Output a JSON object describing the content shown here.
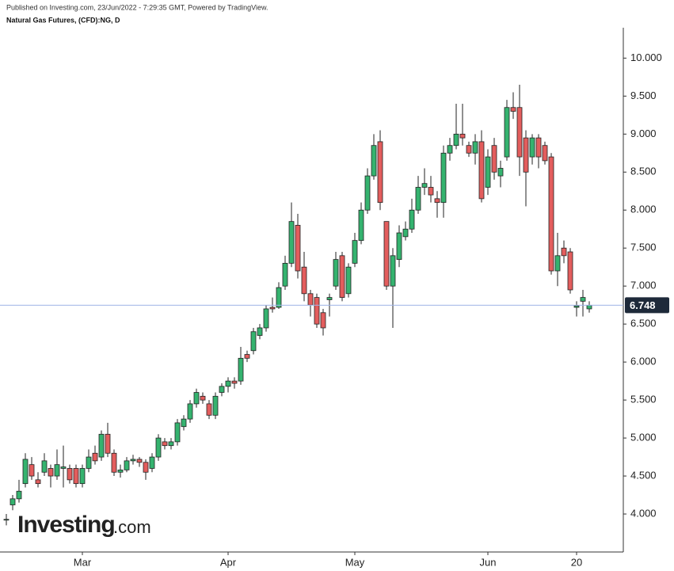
{
  "header": {
    "published": "Published on Investing.com, 23/Jun/2022 - 7:29:35 GMT, Powered by TradingView.",
    "symbol": "Natural Gas Futures, (CFD):NG, D"
  },
  "logo": {
    "brand": "Investing",
    "suffix": ".com"
  },
  "chart_data": {
    "type": "candlestick",
    "categories": [
      null,
      null,
      null,
      null,
      null,
      null,
      null,
      null,
      null,
      null,
      null,
      null,
      "Mar",
      null,
      null,
      null,
      null,
      null,
      null,
      null,
      null,
      null,
      null,
      null,
      null,
      null,
      null,
      null,
      null,
      null,
      null,
      null,
      null,
      null,
      null,
      "Apr",
      null,
      null,
      null,
      null,
      null,
      null,
      null,
      null,
      null,
      null,
      null,
      null,
      null,
      null,
      null,
      null,
      null,
      null,
      null,
      "May",
      null,
      null,
      null,
      null,
      null,
      null,
      null,
      null,
      null,
      null,
      null,
      null,
      null,
      null,
      null,
      null,
      null,
      null,
      null,
      null,
      "Jun",
      null,
      null,
      null,
      null,
      null,
      null,
      null,
      null,
      null,
      null,
      null,
      null,
      null,
      "20",
      null,
      null
    ],
    "open": [
      3.92,
      4.12,
      4.2,
      4.4,
      4.65,
      4.45,
      4.55,
      4.6,
      4.5,
      4.6,
      4.6,
      4.6,
      4.4,
      4.6,
      4.8,
      4.75,
      5.05,
      4.8,
      4.55,
      4.58,
      4.7,
      4.72,
      4.68,
      4.6,
      4.75,
      4.95,
      4.9,
      4.95,
      5.15,
      5.25,
      5.45,
      5.55,
      5.45,
      5.3,
      5.6,
      5.68,
      5.75,
      5.75,
      6.1,
      6.15,
      6.35,
      6.45,
      6.72,
      6.72,
      7.0,
      7.3,
      7.8,
      7.25,
      6.9,
      6.85,
      6.65,
      6.82,
      7.0,
      7.4,
      6.9,
      7.3,
      7.6,
      8.0,
      8.45,
      8.9,
      7.85,
      7.0,
      7.35,
      7.65,
      7.75,
      8.0,
      8.3,
      8.3,
      8.15,
      8.1,
      8.75,
      8.85,
      9.0,
      8.85,
      8.75,
      8.9,
      8.3,
      8.85,
      8.45,
      8.7,
      9.35,
      9.35,
      8.95,
      8.7,
      8.95,
      8.85,
      8.7,
      7.2,
      7.5,
      7.45,
      6.72,
      6.8,
      6.7
    ],
    "high": [
      4.0,
      4.25,
      4.45,
      4.8,
      4.75,
      4.55,
      4.8,
      4.65,
      4.85,
      4.9,
      4.65,
      4.65,
      4.65,
      4.85,
      4.9,
      5.1,
      5.2,
      4.85,
      4.65,
      4.75,
      4.78,
      4.75,
      4.72,
      4.8,
      5.05,
      5.0,
      5.0,
      5.25,
      5.3,
      5.5,
      5.65,
      5.6,
      5.5,
      5.6,
      5.72,
      5.8,
      5.8,
      6.2,
      6.15,
      6.45,
      6.5,
      6.75,
      6.85,
      7.05,
      7.4,
      8.1,
      7.95,
      7.45,
      6.95,
      6.9,
      6.7,
      6.9,
      7.45,
      7.45,
      7.3,
      7.7,
      8.1,
      8.55,
      9.0,
      9.05,
      7.85,
      7.5,
      7.8,
      7.85,
      8.15,
      8.45,
      8.55,
      8.45,
      8.25,
      8.85,
      8.95,
      9.4,
      9.4,
      8.9,
      9.0,
      9.05,
      8.8,
      8.95,
      8.65,
      9.45,
      9.55,
      9.65,
      9.05,
      9.0,
      9.0,
      8.9,
      8.75,
      7.7,
      7.6,
      7.5,
      6.8,
      6.95,
      6.8
    ],
    "low": [
      3.85,
      4.05,
      4.15,
      4.35,
      4.45,
      4.35,
      4.5,
      4.35,
      4.45,
      4.35,
      4.4,
      4.35,
      4.35,
      4.55,
      4.65,
      4.7,
      4.75,
      4.5,
      4.48,
      4.55,
      4.65,
      4.62,
      4.45,
      4.55,
      4.7,
      4.85,
      4.85,
      4.9,
      5.1,
      5.2,
      5.4,
      5.45,
      5.25,
      5.25,
      5.55,
      5.6,
      5.65,
      5.7,
      6.0,
      6.1,
      6.3,
      6.4,
      6.65,
      6.7,
      6.95,
      7.25,
      7.1,
      6.8,
      6.6,
      6.45,
      6.35,
      6.6,
      6.95,
      6.8,
      6.85,
      7.25,
      7.55,
      7.95,
      8.4,
      8.0,
      6.95,
      6.45,
      7.25,
      7.6,
      7.7,
      7.95,
      8.2,
      8.1,
      7.9,
      7.9,
      8.65,
      8.8,
      8.85,
      8.7,
      8.6,
      8.1,
      8.2,
      8.4,
      8.3,
      8.65,
      9.2,
      8.45,
      8.05,
      8.6,
      8.55,
      8.6,
      7.15,
      7.0,
      7.3,
      6.9,
      6.6,
      6.6,
      6.65
    ],
    "close": [
      3.93,
      4.2,
      4.3,
      4.72,
      4.5,
      4.4,
      4.7,
      4.5,
      4.65,
      4.62,
      4.45,
      4.4,
      4.6,
      4.75,
      4.7,
      5.05,
      4.8,
      4.55,
      4.58,
      4.7,
      4.72,
      4.68,
      4.55,
      4.75,
      5.0,
      4.9,
      4.95,
      5.2,
      5.25,
      5.45,
      5.6,
      5.5,
      5.3,
      5.55,
      5.68,
      5.75,
      5.72,
      6.05,
      6.05,
      6.4,
      6.45,
      6.7,
      6.7,
      6.98,
      7.3,
      7.85,
      7.2,
      6.9,
      6.75,
      6.5,
      6.45,
      6.85,
      7.35,
      6.85,
      7.25,
      7.6,
      8.0,
      8.45,
      8.85,
      8.1,
      7.0,
      7.4,
      7.7,
      7.75,
      8.0,
      8.3,
      8.35,
      8.2,
      8.1,
      8.75,
      8.85,
      9.0,
      8.95,
      8.75,
      8.9,
      8.15,
      8.7,
      8.5,
      8.55,
      9.35,
      9.3,
      8.7,
      8.5,
      8.95,
      8.7,
      8.65,
      7.2,
      7.4,
      7.4,
      6.95,
      6.74,
      6.85,
      6.748
    ],
    "up_color": "#35b36f",
    "down_color": "#e35d5d",
    "last_price": 6.748,
    "last_price_color": "#9fb3e6",
    "ylim": [
      3.5,
      10.4
    ],
    "yticks": [
      {
        "value": 4,
        "label": "4.000"
      },
      {
        "value": 4.5,
        "label": "4.500"
      },
      {
        "value": 5,
        "label": "5.000"
      },
      {
        "value": 5.5,
        "label": "5.500"
      },
      {
        "value": 6,
        "label": "6.000"
      },
      {
        "value": 6.5,
        "label": "6.500"
      },
      {
        "value": 7,
        "label": "7.000"
      },
      {
        "value": 7.5,
        "label": "7.500"
      },
      {
        "value": 8,
        "label": "8.000"
      },
      {
        "value": 8.5,
        "label": "8.500"
      },
      {
        "value": 9,
        "label": "9.000"
      },
      {
        "value": 9.5,
        "label": "9.500"
      },
      {
        "value": 10,
        "label": "10.000"
      }
    ],
    "grid": false
  }
}
